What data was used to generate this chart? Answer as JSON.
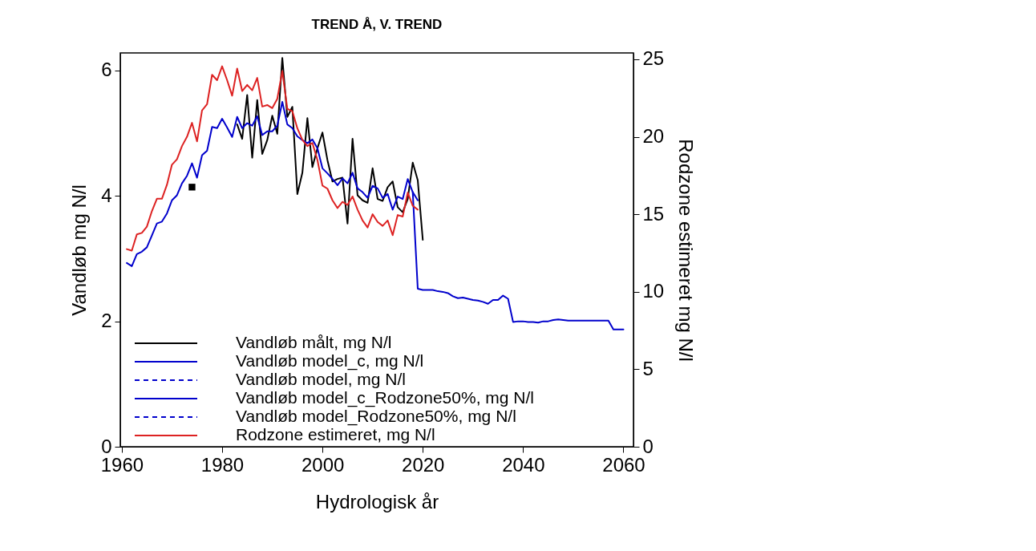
{
  "chart_data": {
    "type": "line",
    "title": "TREND Å, V. TREND",
    "xlabel": "Hydrologisk år",
    "ylabel": "Vandløb mg N/l",
    "y2label": "Rodzone estimeret mg N/l",
    "xlim": [
      1959.7,
      2062
    ],
    "xticks": [
      1960,
      1980,
      2000,
      2020,
      2040,
      2060
    ],
    "ylim": [
      0,
      6.28
    ],
    "yticks": [
      0,
      2,
      4,
      6
    ],
    "y2lim": [
      0,
      25.41
    ],
    "y2ticks": [
      0,
      5,
      10,
      15,
      20,
      25
    ],
    "legend": "bottom left",
    "series": [
      {
        "name": "Vandløb målt, mg N/l",
        "color": "#000000",
        "line_style": "solid",
        "x": [
          1983,
          1984,
          1985,
          1986,
          1987,
          1988,
          1989,
          1990,
          1991,
          1992,
          1993,
          1994,
          1995,
          1996,
          1997,
          1998,
          1999,
          2000,
          2001,
          2002,
          2003,
          2004,
          2005,
          2006,
          2007,
          2008,
          2009,
          2010,
          2011,
          2012,
          2013,
          2014,
          2015,
          2016,
          2017,
          2018,
          2019,
          2020
        ],
        "values": [
          5.14,
          4.91,
          5.61,
          4.61,
          5.53,
          4.67,
          4.89,
          5.28,
          4.99,
          6.2,
          5.26,
          5.42,
          4.03,
          4.37,
          5.24,
          4.46,
          4.76,
          5.01,
          4.57,
          4.23,
          4.27,
          4.29,
          3.56,
          4.91,
          4.01,
          3.93,
          3.89,
          4.44,
          3.95,
          3.92,
          4.14,
          4.23,
          3.82,
          3.74,
          3.95,
          4.53,
          4.25,
          3.3
        ]
      },
      {
        "type": "scatter",
        "color": "#000000",
        "marker": "square",
        "x": [
          1974
        ],
        "values": [
          4.14
        ]
      },
      {
        "name": "Vandløb model_c, mg N/l",
        "color": "#0000cc",
        "line_style": "solid",
        "x": [
          1961,
          1962,
          1963,
          1964,
          1965,
          1966,
          1967,
          1968,
          1969,
          1970,
          1971,
          1972,
          1973,
          1974,
          1975,
          1976,
          1977,
          1978,
          1979,
          1980,
          1981,
          1982,
          1983,
          1984,
          1985,
          1986,
          1987,
          1988,
          1989,
          1990,
          1991,
          1992,
          1993,
          1994,
          1995,
          1996,
          1997,
          1998,
          1999,
          2000,
          2001,
          2002,
          2003,
          2004,
          2005,
          2006,
          2007,
          2008,
          2009,
          2010,
          2011,
          2012,
          2013,
          2014,
          2015,
          2016,
          2017,
          2018,
          2019
        ],
        "values": [
          2.93,
          2.88,
          3.07,
          3.11,
          3.18,
          3.37,
          3.56,
          3.59,
          3.72,
          3.93,
          4.01,
          4.2,
          4.32,
          4.52,
          4.29,
          4.65,
          4.72,
          5.1,
          5.08,
          5.23,
          5.09,
          4.94,
          5.26,
          5.08,
          5.16,
          5.12,
          5.27,
          4.97,
          5.03,
          5.03,
          5.12,
          5.5,
          5.14,
          5.08,
          4.95,
          4.89,
          4.84,
          4.9,
          4.76,
          4.44,
          4.36,
          4.27,
          4.17,
          4.28,
          4.2,
          4.37,
          4.12,
          4.06,
          3.97,
          4.16,
          4.12,
          3.97,
          4.03,
          3.78,
          3.99,
          3.95,
          4.27,
          4.06,
          3.93
        ]
      },
      {
        "name": "Vandløb model, mg N/l",
        "color": "#0000cc",
        "line_style": "dashed"
      },
      {
        "name": "Vandløb model_c_Rodzone50%, mg N/l",
        "color": "#0000cc",
        "line_style": "solid",
        "x": [
          2018,
          2019,
          2020,
          2021,
          2022,
          2023,
          2024,
          2025,
          2026,
          2027,
          2028,
          2029,
          2030,
          2031,
          2032,
          2033,
          2034,
          2035,
          2036,
          2037,
          2038,
          2039,
          2040,
          2041,
          2042,
          2043,
          2044,
          2045,
          2046,
          2047,
          2048,
          2049,
          2050,
          2051,
          2052,
          2053,
          2054,
          2055,
          2056,
          2057,
          2058,
          2059,
          2060
        ],
        "values": [
          4.06,
          2.52,
          2.5,
          2.5,
          2.5,
          2.48,
          2.47,
          2.45,
          2.4,
          2.37,
          2.38,
          2.36,
          2.34,
          2.33,
          2.31,
          2.28,
          2.34,
          2.34,
          2.41,
          2.36,
          1.99,
          2,
          2,
          1.99,
          1.99,
          1.98,
          2,
          2,
          2.02,
          2.03,
          2.02,
          2.01,
          2.01,
          2.01,
          2.01,
          2.01,
          2.01,
          2.01,
          2.01,
          2.01,
          1.87,
          1.87,
          1.87
        ]
      },
      {
        "name": "Vandløb model_Rodzone50%, mg N/l",
        "color": "#0000cc",
        "line_style": "dashed"
      },
      {
        "name": "Rodzone estimeret, mg N/l",
        "color": "#dd2222",
        "line_style": "solid",
        "axis": "y2",
        "x": [
          1961,
          1962,
          1963,
          1964,
          1965,
          1966,
          1967,
          1968,
          1969,
          1970,
          1971,
          1972,
          1973,
          1974,
          1975,
          1976,
          1977,
          1978,
          1979,
          1980,
          1981,
          1982,
          1983,
          1984,
          1985,
          1986,
          1987,
          1988,
          1989,
          1990,
          1991,
          1992,
          1993,
          1994,
          1995,
          1996,
          1997,
          1998,
          1999,
          2000,
          2001,
          2002,
          2003,
          2004,
          2005,
          2006,
          2007,
          2008,
          2009,
          2010,
          2011,
          2012,
          2013,
          2014,
          2015,
          2016,
          2017,
          2018,
          2019
        ],
        "values": [
          12.75,
          12.65,
          13.7,
          13.8,
          14.2,
          15.2,
          16,
          16,
          16.9,
          18.2,
          18.55,
          19.4,
          20,
          20.9,
          19.7,
          21.7,
          22.1,
          24,
          23.65,
          24.55,
          23.65,
          22.65,
          24.4,
          22.95,
          23.35,
          23,
          23.8,
          21.95,
          22.05,
          21.85,
          22.45,
          24.25,
          21.8,
          21.65,
          20.55,
          19.8,
          19.4,
          19.6,
          18.5,
          16.85,
          16.65,
          15.9,
          15.4,
          15.8,
          15.6,
          16.15,
          15.3,
          14.6,
          14.15,
          15,
          14.5,
          14.25,
          14.6,
          13.65,
          14.95,
          14.85,
          16.4,
          15.55,
          15.3
        ]
      }
    ]
  }
}
